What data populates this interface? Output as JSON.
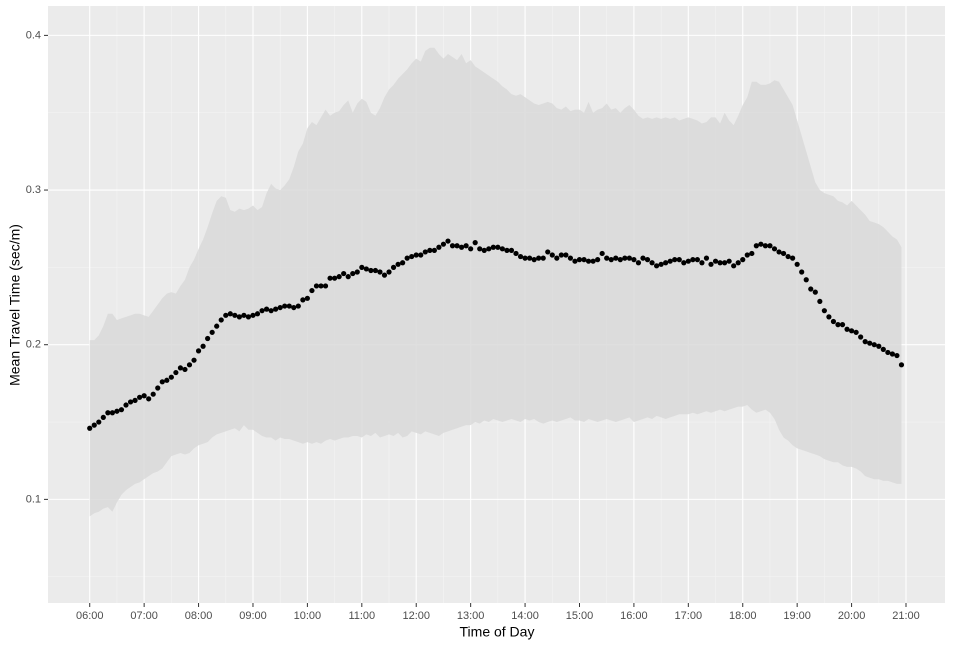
{
  "chart_data": {
    "type": "scatter",
    "x_label": "Time of Day",
    "y_label": "Mean Travel Time (sec/m)",
    "color": "#000000",
    "band_color": "#d9d9d9",
    "grid": true,
    "xlim": [
      314,
      1303
    ],
    "ylim": [
      0.033,
      0.419
    ],
    "xticks": [
      {
        "value": 360,
        "label": "06:00"
      },
      {
        "value": 420,
        "label": "07:00"
      },
      {
        "value": 480,
        "label": "08:00"
      },
      {
        "value": 540,
        "label": "09:00"
      },
      {
        "value": 600,
        "label": "10:00"
      },
      {
        "value": 660,
        "label": "11:00"
      },
      {
        "value": 720,
        "label": "12:00"
      },
      {
        "value": 780,
        "label": "13:00"
      },
      {
        "value": 840,
        "label": "14:00"
      },
      {
        "value": 900,
        "label": "15:00"
      },
      {
        "value": 960,
        "label": "16:00"
      },
      {
        "value": 1020,
        "label": "17:00"
      },
      {
        "value": 1080,
        "label": "18:00"
      },
      {
        "value": 1140,
        "label": "19:00"
      },
      {
        "value": 1200,
        "label": "20:00"
      },
      {
        "value": 1260,
        "label": "21:00"
      }
    ],
    "yticks": [
      0.1,
      0.2,
      0.3,
      0.4
    ],
    "x": [
      360,
      365,
      370,
      375,
      380,
      385,
      390,
      395,
      400,
      405,
      410,
      415,
      420,
      425,
      430,
      435,
      440,
      445,
      450,
      455,
      460,
      465,
      470,
      475,
      480,
      485,
      490,
      495,
      500,
      505,
      510,
      515,
      520,
      525,
      530,
      535,
      540,
      545,
      550,
      555,
      560,
      565,
      570,
      575,
      580,
      585,
      590,
      595,
      600,
      605,
      610,
      615,
      620,
      625,
      630,
      635,
      640,
      645,
      650,
      655,
      660,
      665,
      670,
      675,
      680,
      685,
      690,
      695,
      700,
      705,
      710,
      715,
      720,
      725,
      730,
      735,
      740,
      745,
      750,
      755,
      760,
      765,
      770,
      775,
      780,
      785,
      790,
      795,
      800,
      805,
      810,
      815,
      820,
      825,
      830,
      835,
      840,
      845,
      850,
      855,
      860,
      865,
      870,
      875,
      880,
      885,
      890,
      895,
      900,
      905,
      910,
      915,
      920,
      925,
      930,
      935,
      940,
      945,
      950,
      955,
      960,
      965,
      970,
      975,
      980,
      985,
      990,
      995,
      1000,
      1005,
      1010,
      1015,
      1020,
      1025,
      1030,
      1035,
      1040,
      1045,
      1050,
      1055,
      1060,
      1065,
      1070,
      1075,
      1080,
      1085,
      1090,
      1095,
      1100,
      1105,
      1110,
      1115,
      1120,
      1125,
      1130,
      1135,
      1140,
      1145,
      1150,
      1155,
      1160,
      1165,
      1170,
      1175,
      1180,
      1185,
      1190,
      1195,
      1200,
      1205,
      1210,
      1215,
      1220,
      1225,
      1230,
      1235,
      1240,
      1245,
      1250,
      1255
    ],
    "values": [
      0.146,
      0.148,
      0.15,
      0.153,
      0.156,
      0.156,
      0.157,
      0.158,
      0.161,
      0.163,
      0.164,
      0.166,
      0.167,
      0.165,
      0.168,
      0.172,
      0.176,
      0.177,
      0.179,
      0.182,
      0.185,
      0.184,
      0.187,
      0.19,
      0.196,
      0.199,
      0.204,
      0.208,
      0.212,
      0.216,
      0.219,
      0.22,
      0.219,
      0.218,
      0.219,
      0.218,
      0.219,
      0.22,
      0.222,
      0.223,
      0.222,
      0.223,
      0.224,
      0.225,
      0.225,
      0.224,
      0.225,
      0.229,
      0.23,
      0.235,
      0.238,
      0.238,
      0.238,
      0.243,
      0.243,
      0.244,
      0.246,
      0.244,
      0.246,
      0.247,
      0.25,
      0.249,
      0.248,
      0.248,
      0.247,
      0.245,
      0.247,
      0.25,
      0.252,
      0.253,
      0.256,
      0.257,
      0.258,
      0.258,
      0.26,
      0.261,
      0.261,
      0.263,
      0.265,
      0.267,
      0.264,
      0.264,
      0.263,
      0.264,
      0.262,
      0.266,
      0.262,
      0.261,
      0.262,
      0.263,
      0.263,
      0.262,
      0.261,
      0.261,
      0.259,
      0.257,
      0.256,
      0.256,
      0.255,
      0.256,
      0.256,
      0.26,
      0.258,
      0.256,
      0.258,
      0.258,
      0.256,
      0.254,
      0.255,
      0.255,
      0.254,
      0.254,
      0.255,
      0.259,
      0.256,
      0.255,
      0.256,
      0.255,
      0.256,
      0.256,
      0.255,
      0.253,
      0.256,
      0.255,
      0.253,
      0.251,
      0.252,
      0.253,
      0.254,
      0.255,
      0.255,
      0.253,
      0.254,
      0.255,
      0.255,
      0.253,
      0.256,
      0.252,
      0.254,
      0.253,
      0.253,
      0.254,
      0.251,
      0.253,
      0.255,
      0.258,
      0.259,
      0.264,
      0.265,
      0.264,
      0.264,
      0.262,
      0.26,
      0.259,
      0.257,
      0.256,
      0.252,
      0.247,
      0.242,
      0.236,
      0.234,
      0.228,
      0.222,
      0.218,
      0.215,
      0.213,
      0.213,
      0.21,
      0.209,
      0.208,
      0.205,
      0.202,
      0.201,
      0.2,
      0.199,
      0.197,
      0.195,
      0.194,
      0.193,
      0.187
    ],
    "band": {
      "upper": [
        0.203,
        0.203,
        0.206,
        0.212,
        0.22,
        0.22,
        0.216,
        0.217,
        0.218,
        0.219,
        0.22,
        0.22,
        0.219,
        0.218,
        0.222,
        0.226,
        0.23,
        0.233,
        0.234,
        0.233,
        0.238,
        0.242,
        0.25,
        0.255,
        0.262,
        0.268,
        0.276,
        0.285,
        0.293,
        0.296,
        0.295,
        0.287,
        0.286,
        0.288,
        0.287,
        0.288,
        0.29,
        0.287,
        0.289,
        0.298,
        0.304,
        0.301,
        0.3,
        0.303,
        0.307,
        0.315,
        0.325,
        0.33,
        0.34,
        0.344,
        0.342,
        0.347,
        0.352,
        0.348,
        0.35,
        0.351,
        0.355,
        0.358,
        0.35,
        0.356,
        0.359,
        0.357,
        0.35,
        0.348,
        0.353,
        0.36,
        0.365,
        0.368,
        0.372,
        0.375,
        0.378,
        0.382,
        0.385,
        0.383,
        0.39,
        0.392,
        0.392,
        0.388,
        0.385,
        0.388,
        0.386,
        0.384,
        0.388,
        0.382,
        0.384,
        0.38,
        0.378,
        0.376,
        0.374,
        0.372,
        0.37,
        0.367,
        0.365,
        0.362,
        0.361,
        0.362,
        0.36,
        0.358,
        0.356,
        0.355,
        0.356,
        0.357,
        0.356,
        0.353,
        0.352,
        0.354,
        0.351,
        0.352,
        0.352,
        0.35,
        0.357,
        0.35,
        0.352,
        0.353,
        0.356,
        0.352,
        0.353,
        0.35,
        0.353,
        0.355,
        0.352,
        0.348,
        0.346,
        0.347,
        0.346,
        0.347,
        0.346,
        0.347,
        0.346,
        0.347,
        0.345,
        0.346,
        0.347,
        0.346,
        0.345,
        0.343,
        0.344,
        0.347,
        0.347,
        0.343,
        0.35,
        0.345,
        0.342,
        0.348,
        0.355,
        0.36,
        0.37,
        0.37,
        0.368,
        0.368,
        0.369,
        0.371,
        0.37,
        0.365,
        0.36,
        0.355,
        0.345,
        0.335,
        0.325,
        0.315,
        0.305,
        0.3,
        0.298,
        0.297,
        0.296,
        0.293,
        0.292,
        0.29,
        0.293,
        0.29,
        0.287,
        0.284,
        0.28,
        0.279,
        0.278,
        0.276,
        0.273,
        0.27,
        0.268,
        0.263
      ],
      "lower": [
        0.089,
        0.091,
        0.092,
        0.094,
        0.095,
        0.092,
        0.098,
        0.103,
        0.106,
        0.108,
        0.11,
        0.111,
        0.113,
        0.115,
        0.117,
        0.118,
        0.12,
        0.124,
        0.128,
        0.129,
        0.13,
        0.129,
        0.13,
        0.133,
        0.135,
        0.136,
        0.137,
        0.14,
        0.142,
        0.143,
        0.144,
        0.145,
        0.146,
        0.144,
        0.148,
        0.145,
        0.145,
        0.143,
        0.141,
        0.14,
        0.14,
        0.138,
        0.14,
        0.139,
        0.139,
        0.138,
        0.137,
        0.136,
        0.137,
        0.136,
        0.137,
        0.136,
        0.138,
        0.139,
        0.138,
        0.139,
        0.14,
        0.14,
        0.141,
        0.141,
        0.14,
        0.142,
        0.141,
        0.143,
        0.14,
        0.141,
        0.142,
        0.141,
        0.143,
        0.14,
        0.141,
        0.144,
        0.143,
        0.142,
        0.144,
        0.143,
        0.142,
        0.141,
        0.143,
        0.144,
        0.145,
        0.146,
        0.147,
        0.148,
        0.148,
        0.15,
        0.149,
        0.151,
        0.15,
        0.152,
        0.151,
        0.15,
        0.151,
        0.152,
        0.151,
        0.15,
        0.152,
        0.151,
        0.152,
        0.15,
        0.149,
        0.15,
        0.151,
        0.15,
        0.151,
        0.152,
        0.153,
        0.151,
        0.151,
        0.15,
        0.152,
        0.151,
        0.15,
        0.151,
        0.152,
        0.151,
        0.15,
        0.151,
        0.152,
        0.153,
        0.15,
        0.151,
        0.152,
        0.153,
        0.152,
        0.154,
        0.153,
        0.152,
        0.153,
        0.154,
        0.155,
        0.155,
        0.155,
        0.156,
        0.155,
        0.156,
        0.157,
        0.156,
        0.157,
        0.158,
        0.157,
        0.158,
        0.159,
        0.16,
        0.16,
        0.161,
        0.158,
        0.156,
        0.157,
        0.158,
        0.156,
        0.152,
        0.145,
        0.14,
        0.138,
        0.135,
        0.133,
        0.132,
        0.131,
        0.13,
        0.129,
        0.128,
        0.126,
        0.125,
        0.124,
        0.124,
        0.122,
        0.121,
        0.121,
        0.12,
        0.118,
        0.115,
        0.114,
        0.113,
        0.113,
        0.112,
        0.112,
        0.111,
        0.11,
        0.11
      ]
    }
  }
}
